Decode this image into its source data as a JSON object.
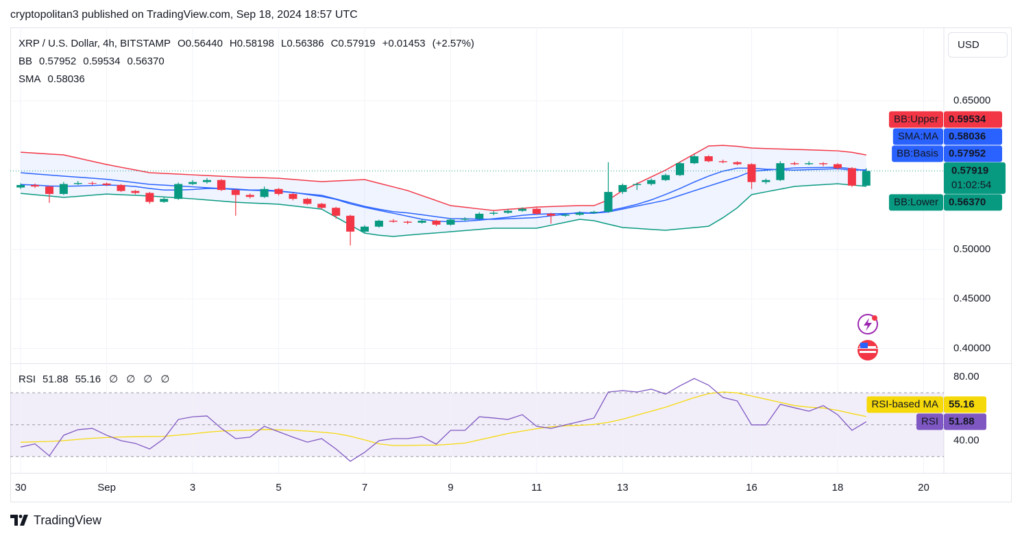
{
  "header": "cryptopolitan3 published on TradingView.com, Sep 18, 2024 18:57 UTC",
  "currency": "USD",
  "footer": "TradingView",
  "chart_data": {
    "type": "candlestick",
    "title": "XRP / U.S. Dollar, 4h, BITSTAMP",
    "ohlc": [
      {
        "key": "O",
        "value": "0.56440"
      },
      {
        "key": "H",
        "value": "0.58198"
      },
      {
        "key": "L",
        "value": "0.56386"
      },
      {
        "key": "C",
        "value": "0.57919"
      }
    ],
    "change": [
      "+0.01453",
      "(+2.57%)"
    ],
    "countdown": "01:02:54",
    "up_color": "#089981",
    "down_color": "#f23645",
    "grid": true,
    "xlim": [
      -5.8,
      515.3
    ],
    "xticks": [
      {
        "value": 0,
        "label": "30"
      },
      {
        "value": 48,
        "label": "Sep"
      },
      {
        "value": 96,
        "label": "3"
      },
      {
        "value": 144,
        "label": "5"
      },
      {
        "value": 192,
        "label": "7"
      },
      {
        "value": 240,
        "label": "9"
      },
      {
        "value": 288,
        "label": "11"
      },
      {
        "value": 336,
        "label": "13"
      },
      {
        "value": 408,
        "label": "16"
      },
      {
        "value": 456,
        "label": "18"
      },
      {
        "value": 504,
        "label": "20"
      }
    ],
    "ylim": [
      0.3852,
      0.724
    ],
    "yticks": [
      {
        "value": 0.4,
        "label": "0.40000"
      },
      {
        "value": 0.45,
        "label": "0.45000"
      },
      {
        "value": 0.5,
        "label": "0.50000"
      },
      {
        "value": 0.65,
        "label": "0.65000"
      }
    ],
    "x": [
      0,
      8,
      16,
      24,
      32,
      40,
      48,
      56,
      64,
      72,
      80,
      88,
      96,
      104,
      112,
      120,
      128,
      136,
      144,
      152,
      160,
      168,
      176,
      184,
      192,
      200,
      208,
      216,
      224,
      232,
      240,
      248,
      256,
      264,
      272,
      280,
      288,
      296,
      304,
      312,
      320,
      328,
      336,
      344,
      352,
      360,
      368,
      376,
      384,
      392,
      400,
      408,
      416,
      424,
      432,
      440,
      448,
      456,
      464,
      472
    ],
    "candles": [
      [
        0.5625,
        0.5668,
        0.561,
        0.565
      ],
      [
        0.565,
        0.5665,
        0.562,
        0.5635
      ],
      [
        0.5635,
        0.5645,
        0.547,
        0.556
      ],
      [
        0.556,
        0.568,
        0.555,
        0.566
      ],
      [
        0.566,
        0.569,
        0.565,
        0.567
      ],
      [
        0.567,
        0.5685,
        0.565,
        0.5665
      ],
      [
        0.5665,
        0.5675,
        0.564,
        0.565
      ],
      [
        0.565,
        0.566,
        0.558,
        0.559
      ],
      [
        0.559,
        0.56,
        0.5555,
        0.557
      ],
      [
        0.557,
        0.558,
        0.546,
        0.548
      ],
      [
        0.548,
        0.5525,
        0.547,
        0.551
      ],
      [
        0.551,
        0.5675,
        0.55,
        0.566
      ],
      [
        0.566,
        0.57,
        0.565,
        0.568
      ],
      [
        0.568,
        0.572,
        0.5665,
        0.57
      ],
      [
        0.57,
        0.571,
        0.559,
        0.56
      ],
      [
        0.56,
        0.561,
        0.534,
        0.555
      ],
      [
        0.555,
        0.5565,
        0.5515,
        0.553
      ],
      [
        0.553,
        0.5635,
        0.552,
        0.561
      ],
      [
        0.561,
        0.562,
        0.5545,
        0.556
      ],
      [
        0.556,
        0.557,
        0.5495,
        0.551
      ],
      [
        0.551,
        0.552,
        0.545,
        0.546
      ],
      [
        0.546,
        0.547,
        0.5405,
        0.542
      ],
      [
        0.542,
        0.543,
        0.531,
        0.534
      ],
      [
        0.534,
        0.535,
        0.504,
        0.518
      ],
      [
        0.518,
        0.5245,
        0.516,
        0.523
      ],
      [
        0.523,
        0.53,
        0.522,
        0.529
      ],
      [
        0.529,
        0.5305,
        0.527,
        0.528
      ],
      [
        0.528,
        0.529,
        0.5255,
        0.527
      ],
      [
        0.527,
        0.5305,
        0.526,
        0.529
      ],
      [
        0.529,
        0.53,
        0.5235,
        0.525
      ],
      [
        0.525,
        0.5315,
        0.524,
        0.53
      ],
      [
        0.53,
        0.5325,
        0.529,
        0.531
      ],
      [
        0.531,
        0.5375,
        0.53,
        0.536
      ],
      [
        0.536,
        0.5385,
        0.5345,
        0.537
      ],
      [
        0.537,
        0.5405,
        0.536,
        0.539
      ],
      [
        0.539,
        0.5425,
        0.538,
        0.541
      ],
      [
        0.541,
        0.542,
        0.535,
        0.536
      ],
      [
        0.536,
        0.537,
        0.526,
        0.534
      ],
      [
        0.534,
        0.5365,
        0.533,
        0.535
      ],
      [
        0.535,
        0.5385,
        0.534,
        0.537
      ],
      [
        0.537,
        0.539,
        0.536,
        0.538
      ],
      [
        0.538,
        0.588,
        0.537,
        0.558
      ],
      [
        0.558,
        0.5665,
        0.556,
        0.565
      ],
      [
        0.565,
        0.5675,
        0.56,
        0.566
      ],
      [
        0.566,
        0.5715,
        0.5645,
        0.57
      ],
      [
        0.57,
        0.5765,
        0.569,
        0.575
      ],
      [
        0.575,
        0.5885,
        0.574,
        0.587
      ],
      [
        0.587,
        0.596,
        0.586,
        0.594
      ],
      [
        0.594,
        0.595,
        0.588,
        0.589
      ],
      [
        0.589,
        0.5905,
        0.587,
        0.588
      ],
      [
        0.588,
        0.589,
        0.585,
        0.586
      ],
      [
        0.586,
        0.587,
        0.561,
        0.568
      ],
      [
        0.568,
        0.5715,
        0.566,
        0.57
      ],
      [
        0.57,
        0.589,
        0.569,
        0.587
      ],
      [
        0.587,
        0.5885,
        0.585,
        0.586
      ],
      [
        0.586,
        0.589,
        0.585,
        0.587
      ],
      [
        0.587,
        0.588,
        0.584,
        0.586
      ],
      [
        0.586,
        0.587,
        0.5805,
        0.582
      ],
      [
        0.582,
        0.583,
        0.563,
        0.5644
      ],
      [
        0.5644,
        0.58198,
        0.56386,
        0.57919
      ]
    ],
    "overlays": [
      {
        "group": "BB",
        "name": "BB:Basis",
        "color": "#2962ff",
        "value_label": "0.57952",
        "values": [
          0.5774,
          0.5762,
          0.5751,
          0.574,
          0.5729,
          0.5719,
          0.5708,
          0.5691,
          0.5674,
          0.5657,
          0.5649,
          0.564,
          0.5632,
          0.5623,
          0.5614,
          0.5604,
          0.5598,
          0.5593,
          0.5587,
          0.5574,
          0.5559,
          0.5546,
          0.5509,
          0.5472,
          0.5435,
          0.5406,
          0.5381,
          0.5369,
          0.535,
          0.533,
          0.5311,
          0.5309,
          0.5306,
          0.5304,
          0.531,
          0.5315,
          0.5321,
          0.5339,
          0.5356,
          0.5373,
          0.5366,
          0.5378,
          0.5408,
          0.5438,
          0.5467,
          0.5497,
          0.5545,
          0.5592,
          0.5639,
          0.5685,
          0.573,
          0.5788,
          0.58,
          0.5811,
          0.5823,
          0.5825,
          0.5827,
          0.5829,
          0.5815,
          0.57952
        ]
      },
      {
        "group": "BB",
        "name": "BB:Upper",
        "color": "#f23645",
        "value_label": "0.59534",
        "values": [
          0.5981,
          0.5972,
          0.5963,
          0.5954,
          0.5922,
          0.5889,
          0.5857,
          0.5829,
          0.5802,
          0.5774,
          0.5767,
          0.576,
          0.5753,
          0.5746,
          0.5739,
          0.5732,
          0.5727,
          0.5723,
          0.5718,
          0.5707,
          0.5695,
          0.5684,
          0.5691,
          0.5698,
          0.5705,
          0.5668,
          0.5631,
          0.5594,
          0.5543,
          0.5493,
          0.5442,
          0.5426,
          0.5409,
          0.5393,
          0.5405,
          0.5415,
          0.5428,
          0.5433,
          0.5438,
          0.5442,
          0.5442,
          0.55,
          0.5594,
          0.5663,
          0.5732,
          0.5801,
          0.5882,
          0.5963,
          0.6044,
          0.605,
          0.604,
          0.6023,
          0.6018,
          0.6014,
          0.6009,
          0.6005,
          0.6,
          0.5995,
          0.598,
          0.59534
        ]
      },
      {
        "group": "BB",
        "name": "BB:Lower",
        "color": "#089981",
        "value_label": "0.56370",
        "values": [
          0.5566,
          0.5552,
          0.5539,
          0.5525,
          0.5536,
          0.5548,
          0.5559,
          0.5552,
          0.5546,
          0.5539,
          0.553,
          0.552,
          0.5511,
          0.5499,
          0.5488,
          0.5476,
          0.5469,
          0.5463,
          0.5456,
          0.544,
          0.5423,
          0.5407,
          0.5326,
          0.5246,
          0.5165,
          0.5143,
          0.5131,
          0.5144,
          0.5156,
          0.5167,
          0.5179,
          0.5191,
          0.5202,
          0.5214,
          0.5214,
          0.5214,
          0.5214,
          0.5244,
          0.5274,
          0.5304,
          0.529,
          0.5255,
          0.5221,
          0.5212,
          0.5202,
          0.5193,
          0.5207,
          0.522,
          0.5234,
          0.532,
          0.542,
          0.5553,
          0.5581,
          0.5608,
          0.5636,
          0.5645,
          0.5654,
          0.5663,
          0.565,
          0.5637
        ]
      },
      {
        "group": "SMA",
        "name": "SMA:MA",
        "color": "#2962ff",
        "value_label": "0.58036",
        "values": [
          0.5655,
          0.565,
          0.564,
          0.5638,
          0.564,
          0.5645,
          0.565,
          0.5645,
          0.5635,
          0.5615,
          0.56,
          0.56,
          0.5605,
          0.5615,
          0.5615,
          0.561,
          0.56,
          0.56,
          0.559,
          0.5575,
          0.5555,
          0.5535,
          0.5505,
          0.546,
          0.5425,
          0.5395,
          0.5365,
          0.5335,
          0.5305,
          0.5285,
          0.528,
          0.5285,
          0.5295,
          0.531,
          0.5325,
          0.5345,
          0.5355,
          0.536,
          0.5362,
          0.5365,
          0.5365,
          0.539,
          0.542,
          0.5455,
          0.55,
          0.5555,
          0.5615,
          0.568,
          0.574,
          0.579,
          0.582,
          0.582,
          0.581,
          0.5805,
          0.58,
          0.5805,
          0.581,
          0.5815,
          0.58,
          0.58036
        ]
      }
    ],
    "rsi": {
      "label": "RSI",
      "tag": "RSI",
      "ma_tag": "RSI-based MA",
      "color": "#7e57c2",
      "ma_color": "#f5d90a",
      "value_label": "51.88",
      "ma_label": "55.16",
      "extra": [
        "∅",
        "∅",
        "∅",
        "∅"
      ],
      "ylim": [
        19.8,
        87.7
      ],
      "yticks": [
        {
          "value": 80,
          "label": "80.00"
        },
        {
          "value": 40,
          "label": "40.00"
        }
      ],
      "bands": [
        70,
        30
      ],
      "mid": 50,
      "values": [
        36,
        38,
        30.5,
        43.4,
        46.9,
        47.7,
        43.4,
        40,
        38.3,
        34.8,
        41.3,
        53.3,
        55,
        55.5,
        47.7,
        41.3,
        42.2,
        49,
        45.6,
        42.2,
        39.1,
        41.3,
        34.8,
        27.1,
        32.7,
        40,
        41.3,
        41.3,
        42.6,
        37.8,
        46.5,
        46.5,
        55,
        54.2,
        53.3,
        56.3,
        49,
        47.7,
        49.9,
        52,
        54.2,
        70.5,
        71.4,
        70.5,
        72.3,
        69.2,
        74.4,
        79,
        74.8,
        67.1,
        64.9,
        49.9,
        49.9,
        62.8,
        60.6,
        58.5,
        62,
        56.3,
        46.5,
        51.88
      ],
      "ma_values": [
        39,
        39.3,
        39.5,
        40,
        40.8,
        41.5,
        42,
        42.3,
        42.5,
        42.6,
        42.7,
        43.5,
        44.3,
        45.3,
        46,
        46.4,
        46.6,
        47,
        46.8,
        46.5,
        46,
        45.3,
        44.5,
        42.8,
        40.5,
        38,
        37,
        37,
        37.2,
        37.2,
        37.8,
        38.5,
        40.5,
        42.5,
        44.5,
        46,
        47.5,
        48.7,
        49.3,
        49.6,
        50.2,
        51.5,
        53.5,
        56,
        58.5,
        61,
        64,
        67,
        69.5,
        70.5,
        70,
        68,
        66,
        64,
        62,
        61,
        60.5,
        59,
        57,
        55.16
      ]
    }
  }
}
